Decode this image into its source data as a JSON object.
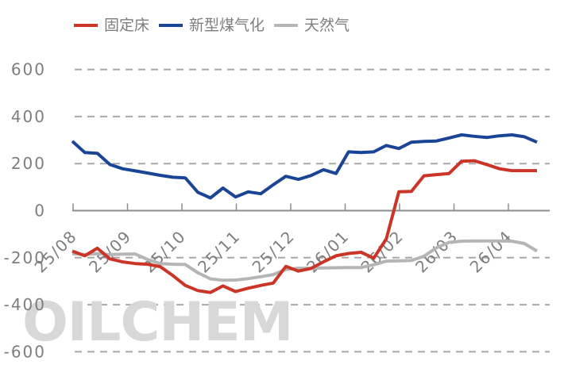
{
  "chart_data": {
    "type": "line",
    "title": "",
    "legend_position": "top",
    "watermark": "OILCHEM",
    "x_axis": {
      "tick_labels": [
        "25/08",
        "25/09",
        "25/10",
        "25/11",
        "25/12",
        "26/01",
        "26/02",
        "26/03",
        "26/04"
      ]
    },
    "y_axis": {
      "min": -600,
      "max": 600,
      "tick_labels": [
        "600",
        "400",
        "200",
        "0",
        "-200",
        "-400",
        "-600"
      ],
      "tick_values": [
        600,
        400,
        200,
        0,
        -200,
        -400,
        -600
      ],
      "gridline_values": [
        600,
        400,
        200,
        -200,
        -400,
        -600
      ],
      "grid": "dashed"
    },
    "series": [
      {
        "name": "固定床",
        "color": "#cb3528",
        "values": [
          -172,
          -192,
          -160,
          -205,
          -218,
          -225,
          -228,
          -238,
          -276,
          -318,
          -340,
          -348,
          -320,
          -344,
          -330,
          -318,
          -308,
          -237,
          -257,
          -246,
          -218,
          -192,
          -182,
          -177,
          -202,
          -120,
          80,
          82,
          148,
          153,
          158,
          210,
          212,
          196,
          178,
          170,
          170,
          170
        ]
      },
      {
        "name": "新型煤气化",
        "color": "#1a4496",
        "values": [
          295,
          247,
          244,
          196,
          178,
          169,
          160,
          150,
          142,
          139,
          78,
          54,
          96,
          58,
          80,
          72,
          110,
          146,
          133,
          149,
          174,
          158,
          250,
          247,
          250,
          277,
          264,
          291,
          294,
          296,
          309,
          322,
          316,
          311,
          318,
          322,
          314,
          291
        ]
      },
      {
        "name": "天然气",
        "color": "#b5b5b5",
        "values": [
          -183,
          -187,
          -183,
          -187,
          -185,
          -184,
          -208,
          -225,
          -228,
          -229,
          -264,
          -290,
          -296,
          -295,
          -289,
          -281,
          -272,
          -250,
          -245,
          -245,
          -244,
          -243,
          -242,
          -242,
          -230,
          -215,
          -213,
          -212,
          -194,
          -158,
          -135,
          -130,
          -129,
          -129,
          -129,
          -130,
          -140,
          -172
        ]
      }
    ]
  }
}
